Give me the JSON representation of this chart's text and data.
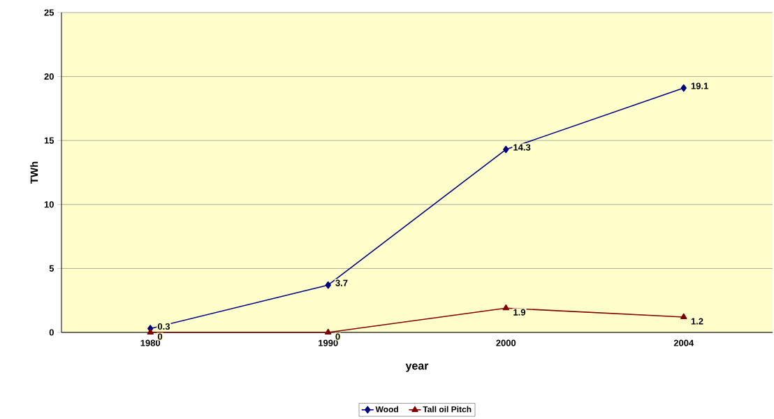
{
  "chart_data": {
    "type": "line",
    "xlabel": "year",
    "ylabel": "TWh",
    "categories": [
      "1980",
      "1990",
      "2000",
      "2004"
    ],
    "series": [
      {
        "name": "Wood",
        "color": "#000080",
        "marker": "diamond",
        "values": [
          0.3,
          3.7,
          14.3,
          19.1
        ]
      },
      {
        "name": "Tall oil Pitch",
        "color": "#800000",
        "marker": "triangle",
        "values": [
          0,
          0,
          1.9,
          1.2
        ]
      }
    ],
    "ylim": [
      0,
      25
    ],
    "yticks": [
      0,
      5,
      10,
      15,
      20,
      25
    ],
    "grid": "y",
    "legend": "bottom",
    "data_labels": true
  }
}
